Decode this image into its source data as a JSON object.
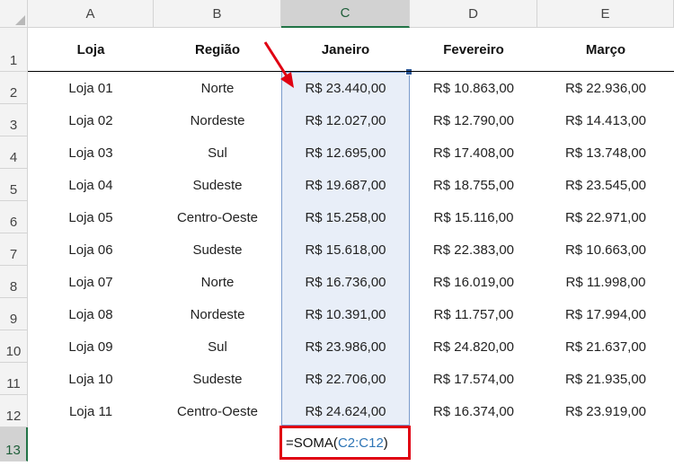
{
  "columns": [
    "A",
    "B",
    "C",
    "D",
    "E"
  ],
  "rows": [
    "1",
    "2",
    "3",
    "4",
    "5",
    "6",
    "7",
    "8",
    "9",
    "10",
    "11",
    "12",
    "13"
  ],
  "headers": [
    "Loja",
    "Região",
    "Janeiro",
    "Fevereiro",
    "Março"
  ],
  "data": [
    [
      "Loja 01",
      "Norte",
      "R$ 23.440,00",
      "R$ 10.863,00",
      "R$ 22.936,00"
    ],
    [
      "Loja 02",
      "Nordeste",
      "R$ 12.027,00",
      "R$ 12.790,00",
      "R$ 14.413,00"
    ],
    [
      "Loja 03",
      "Sul",
      "R$ 12.695,00",
      "R$ 17.408,00",
      "R$ 13.748,00"
    ],
    [
      "Loja 04",
      "Sudeste",
      "R$ 19.687,00",
      "R$ 18.755,00",
      "R$ 23.545,00"
    ],
    [
      "Loja 05",
      "Centro-Oeste",
      "R$ 15.258,00",
      "R$ 15.116,00",
      "R$ 22.971,00"
    ],
    [
      "Loja 06",
      "Sudeste",
      "R$ 15.618,00",
      "R$ 22.383,00",
      "R$ 10.663,00"
    ],
    [
      "Loja 07",
      "Norte",
      "R$ 16.736,00",
      "R$ 16.019,00",
      "R$ 11.998,00"
    ],
    [
      "Loja 08",
      "Nordeste",
      "R$ 10.391,00",
      "R$ 11.757,00",
      "R$ 17.994,00"
    ],
    [
      "Loja 09",
      "Sul",
      "R$ 23.986,00",
      "R$ 24.820,00",
      "R$ 21.637,00"
    ],
    [
      "Loja 10",
      "Sudeste",
      "R$ 22.706,00",
      "R$ 17.574,00",
      "R$ 21.935,00"
    ],
    [
      "Loja 11",
      "Centro-Oeste",
      "R$ 24.624,00",
      "R$ 16.374,00",
      "R$ 23.919,00"
    ]
  ],
  "formula": {
    "prefix": "=SOMA(",
    "ref": "C2:C12",
    "suffix": ")"
  },
  "colors": {
    "annotation": "#e00012",
    "selection_fill": "#e8eef8",
    "reference": "#2e75b6",
    "excel_green": "#217346"
  }
}
